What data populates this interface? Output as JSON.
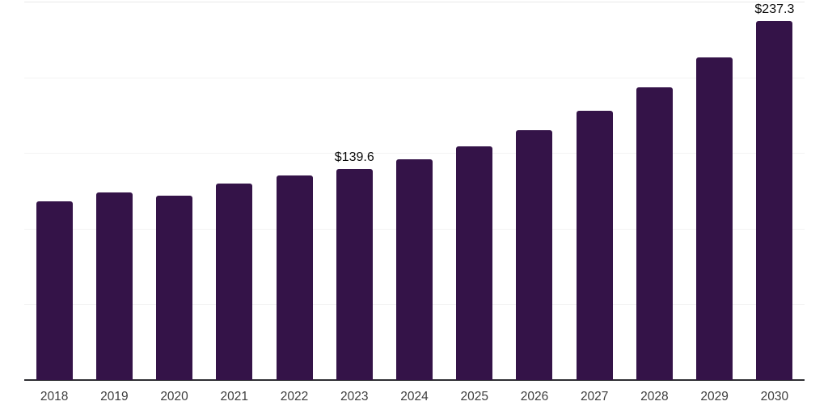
{
  "chart_data": {
    "type": "bar",
    "title": "",
    "xlabel": "",
    "ylabel": "",
    "categories": [
      "2018",
      "2019",
      "2020",
      "2021",
      "2022",
      "2023",
      "2024",
      "2025",
      "2026",
      "2027",
      "2028",
      "2029",
      "2030"
    ],
    "values": [
      118.2,
      123.9,
      121.9,
      129.9,
      135.2,
      139.6,
      146.1,
      154.2,
      164.9,
      177.8,
      193.4,
      213.4,
      237.3
    ],
    "value_labels": {
      "2023": "$139.6",
      "2030": "$237.3"
    },
    "ylim": [
      0,
      250
    ],
    "grid_step": 50,
    "grid": true,
    "y_axis_labels_visible": false,
    "legend": "none",
    "colors": {
      "bar": "#341348",
      "axis_line": "#2e2e33",
      "gridline": "#f3f3f3",
      "gridline_top": "#e9e9e9",
      "tick_label": "#3d3d3d",
      "value_label": "#0a0a0a",
      "background": "#ffffff"
    }
  }
}
